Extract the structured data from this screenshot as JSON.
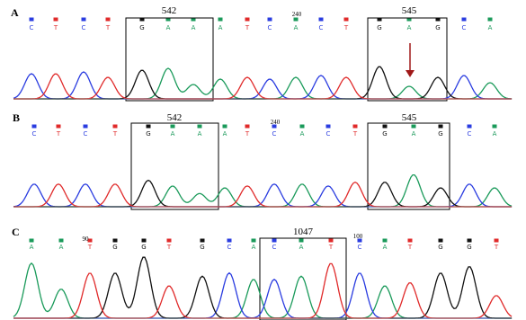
{
  "panels": [
    {
      "label": "A",
      "bases": [
        "C",
        "T",
        "C",
        "T",
        "G",
        "A",
        "A",
        "A",
        "T",
        "C",
        "A",
        "C",
        "T",
        "G",
        "A",
        "G",
        "C",
        "A"
      ],
      "boxes": [
        "542",
        "545"
      ],
      "position": "240"
    },
    {
      "label": "B",
      "bases": [
        "C",
        "T",
        "C",
        "T",
        "G",
        "A",
        "A",
        "A",
        "T",
        "C",
        "A",
        "C",
        "T",
        "G",
        "A",
        "G",
        "C",
        "A"
      ],
      "boxes": [
        "542",
        "545"
      ],
      "position": "240"
    },
    {
      "label": "C",
      "bases": [
        "A",
        "A",
        "T",
        "G",
        "G",
        "T",
        "G",
        "C",
        "A",
        "C",
        "A",
        "T",
        "C",
        "A",
        "T",
        "G",
        "G",
        "T"
      ],
      "boxes": [
        "1047"
      ],
      "positions": [
        "90",
        "100"
      ]
    }
  ]
}
